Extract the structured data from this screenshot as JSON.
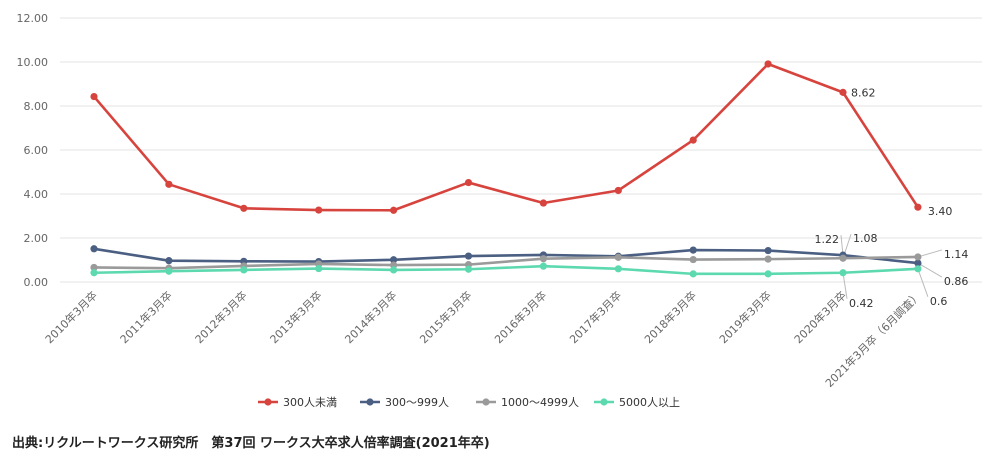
{
  "chart_data": {
    "type": "line",
    "categories": [
      "2010年3月卒",
      "2011年3月卒",
      "2012年3月卒",
      "2013年3月卒",
      "2014年3月卒",
      "2015年3月卒",
      "2016年3月卒",
      "2017年3月卒",
      "2018年3月卒",
      "2019年3月卒",
      "2020年3月卒",
      "2021年3月卒（6月調査）"
    ],
    "ylim": [
      0,
      12
    ],
    "yticks": [
      "0.00",
      "2.00",
      "4.00",
      "6.00",
      "8.00",
      "10.00",
      "12.00"
    ],
    "grid": true,
    "legend_position": "bottom",
    "series": [
      {
        "name": "300人未満",
        "color": "#d7443e",
        "values": [
          8.43,
          4.44,
          3.35,
          3.27,
          3.26,
          4.52,
          3.59,
          4.16,
          6.45,
          9.91,
          8.62,
          3.4
        ]
      },
      {
        "name": "300～999人",
        "color": "#4a5f82",
        "values": [
          1.51,
          0.97,
          0.94,
          0.93,
          1.01,
          1.18,
          1.23,
          1.17,
          1.45,
          1.43,
          1.22,
          0.86
        ]
      },
      {
        "name": "1000～4999人",
        "color": "#9a9a9a",
        "values": [
          0.66,
          0.63,
          0.73,
          0.82,
          0.77,
          0.79,
          1.06,
          1.12,
          1.02,
          1.04,
          1.08,
          1.14
        ]
      },
      {
        "name": "5000人以上",
        "color": "#5dd9b0",
        "values": [
          0.42,
          0.49,
          0.55,
          0.61,
          0.55,
          0.58,
          0.72,
          0.6,
          0.37,
          0.37,
          0.42,
          0.6
        ]
      }
    ],
    "annotations": [
      {
        "series": 0,
        "index": 10,
        "text": "8.62"
      },
      {
        "series": 0,
        "index": 11,
        "text": "3.40"
      },
      {
        "series": 1,
        "index": 10,
        "text": "1.22"
      },
      {
        "series": 2,
        "index": 10,
        "text": "1.08"
      },
      {
        "series": 2,
        "index": 11,
        "text": "1.14"
      },
      {
        "series": 1,
        "index": 11,
        "text": "0.86"
      },
      {
        "series": 3,
        "index": 10,
        "text": "0.42"
      },
      {
        "series": 3,
        "index": 11,
        "text": "0.6"
      }
    ]
  },
  "source_text": "出典:リクルートワークス研究所　第37回 ワークス大卒求人倍率調査(2021年卒)"
}
